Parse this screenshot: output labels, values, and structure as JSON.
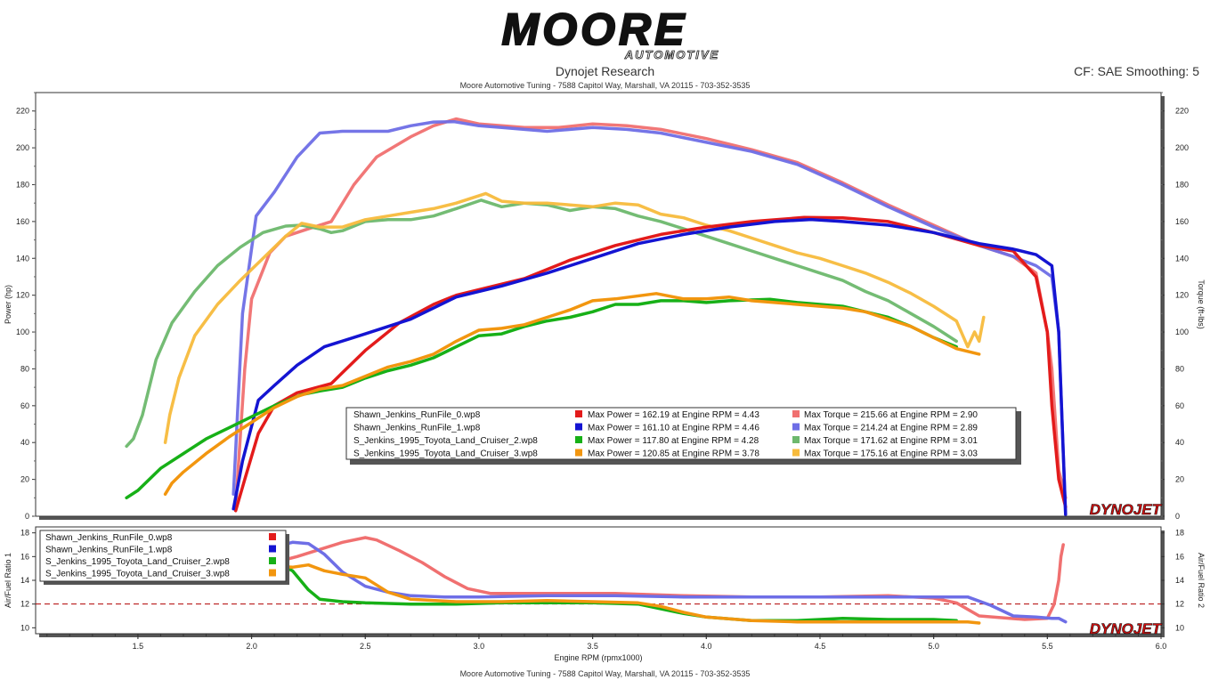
{
  "brand": {
    "logo_text": "MOORE",
    "logo_sub": "AUTOMOTIVE",
    "dyno_logo": "DYNOJET"
  },
  "header": {
    "title": "Dynojet Research",
    "subtitle": "Moore Automotive Tuning - 7588 Capitol Way, Marshall, VA 20115 - 703-352-3535",
    "cf": "CF: SAE Smoothing: 5"
  },
  "footer": {
    "text": "Moore Automotive Tuning - 7588 Capitol Way, Marshall, VA 20115 - 703-352-3535"
  },
  "colors": {
    "run0": "#e31b1b",
    "run0_light": "#f07070",
    "run1": "#1414d2",
    "run1_light": "#6e6ee6",
    "run2": "#17b017",
    "run2_light": "#6db86d",
    "run3": "#f2960f",
    "run3_light": "#f7bb3c",
    "afr_target": "#b00000"
  },
  "chart_data": [
    {
      "type": "line",
      "xlabel": "Engine RPM (rpmx1000)",
      "ylabel": "Power (hp)",
      "y2label": "Torque (ft-lbs)",
      "xlim": [
        1.05,
        6.0
      ],
      "ylim": [
        0,
        230
      ],
      "xticks": [
        1.5,
        2.0,
        2.5,
        3.0,
        3.5,
        4.0,
        4.5,
        5.0,
        5.5,
        6.0
      ],
      "xtick_labels": [
        "1.5",
        "2.0",
        "2.5",
        "3.0",
        "3.5",
        "4.0",
        "4.5",
        "5.0",
        "5.5",
        "6.0"
      ],
      "yticks": [
        0,
        20,
        40,
        60,
        80,
        100,
        120,
        140,
        160,
        180,
        200,
        220
      ],
      "ytick_labels": [
        "0",
        "20",
        "40",
        "60",
        "80",
        "100",
        "120",
        "140",
        "160",
        "180",
        "200",
        "220"
      ],
      "legend_position": "center-right",
      "legend": [
        {
          "file": "Shawn_Jenkins_RunFile_0.wp8",
          "power": "Max Power = 162.19 at Engine RPM = 4.43",
          "torque": "Max Torque = 215.66 at Engine RPM = 2.90"
        },
        {
          "file": "Shawn_Jenkins_RunFile_1.wp8",
          "power": "Max Power = 161.10 at Engine RPM = 4.46",
          "torque": "Max Torque = 214.24 at Engine RPM = 2.89"
        },
        {
          "file": "S_Jenkins_1995_Toyota_Land_Cruiser_2.wp8",
          "power": "Max Power = 117.80 at Engine RPM = 4.28",
          "torque": "Max Torque = 171.62 at Engine RPM = 3.01"
        },
        {
          "file": "S_Jenkins_1995_Toyota_Land_Cruiser_3.wp8",
          "power": "Max Power = 120.85 at Engine RPM = 3.78",
          "torque": "Max Torque = 175.16 at Engine RPM = 3.03"
        }
      ],
      "series": [
        {
          "kind": "torque",
          "run": 0,
          "x": [
            1.93,
            1.97,
            2.0,
            2.08,
            2.15,
            2.25,
            2.35,
            2.45,
            2.55,
            2.7,
            2.8,
            2.9,
            3.0,
            3.1,
            3.2,
            3.35,
            3.5,
            3.65,
            3.8,
            4.0,
            4.2,
            4.4,
            4.6,
            4.8,
            5.0,
            5.2,
            5.35,
            5.45,
            5.5,
            5.52,
            5.55,
            5.58
          ],
          "y": [
            5,
            80,
            118,
            143,
            152,
            156,
            160,
            180,
            195,
            206,
            212,
            215.7,
            213,
            212,
            211,
            211,
            213,
            212,
            210,
            205,
            199,
            192,
            181,
            169,
            158,
            147,
            141,
            132,
            100,
            80,
            25,
            10
          ]
        },
        {
          "kind": "torque",
          "run": 1,
          "x": [
            1.92,
            1.96,
            2.02,
            2.1,
            2.2,
            2.3,
            2.4,
            2.5,
            2.6,
            2.7,
            2.8,
            2.89,
            3.0,
            3.1,
            3.2,
            3.3,
            3.5,
            3.65,
            3.8,
            4.0,
            4.2,
            4.4,
            4.6,
            4.8,
            5.0,
            5.2,
            5.35,
            5.45,
            5.52,
            5.55,
            5.58
          ],
          "y": [
            12,
            110,
            163,
            176,
            195,
            208,
            209,
            209,
            209,
            212,
            214,
            214.2,
            212,
            211,
            210,
            209,
            211,
            210,
            208,
            203,
            198,
            191,
            180,
            168,
            157,
            147,
            141,
            136,
            130,
            100,
            1
          ]
        },
        {
          "kind": "torque",
          "run": 2,
          "x": [
            1.45,
            1.48,
            1.52,
            1.58,
            1.65,
            1.75,
            1.85,
            1.95,
            2.05,
            2.15,
            2.22,
            2.3,
            2.35,
            2.4,
            2.5,
            2.6,
            2.7,
            2.8,
            2.9,
            3.01,
            3.1,
            3.2,
            3.3,
            3.4,
            3.5,
            3.6,
            3.7,
            3.8,
            3.9,
            4.0,
            4.1,
            4.2,
            4.3,
            4.4,
            4.5,
            4.6,
            4.7,
            4.8,
            4.9,
            5.0,
            5.1
          ],
          "y": [
            38,
            42,
            55,
            85,
            105,
            122,
            136,
            146,
            154,
            157.5,
            158,
            156,
            154,
            155,
            160,
            161,
            161,
            163,
            167,
            171.6,
            168,
            170,
            169,
            166,
            168,
            167,
            163,
            160,
            156,
            152,
            148,
            144,
            140,
            136,
            132,
            128,
            122,
            117,
            110,
            103,
            95
          ]
        },
        {
          "kind": "torque",
          "run": 3,
          "x": [
            1.62,
            1.64,
            1.68,
            1.75,
            1.85,
            1.95,
            2.05,
            2.15,
            2.22,
            2.3,
            2.4,
            2.5,
            2.6,
            2.7,
            2.8,
            2.9,
            3.03,
            3.1,
            3.2,
            3.3,
            3.4,
            3.5,
            3.6,
            3.7,
            3.8,
            3.9,
            4.0,
            4.1,
            4.2,
            4.3,
            4.4,
            4.5,
            4.6,
            4.7,
            4.8,
            4.9,
            5.0,
            5.1,
            5.15,
            5.18,
            5.2,
            5.22
          ],
          "y": [
            40,
            55,
            75,
            98,
            115,
            128,
            140,
            152,
            159,
            157,
            157,
            161,
            163,
            165,
            167,
            170,
            175.2,
            171,
            170,
            170,
            169,
            168,
            170,
            169,
            164,
            162,
            158,
            155,
            151,
            147,
            143,
            140,
            136,
            132,
            127,
            121,
            114,
            106,
            92,
            100,
            95,
            108
          ]
        },
        {
          "kind": "power",
          "run": 0,
          "x": [
            1.93,
            1.97,
            2.03,
            2.1,
            2.2,
            2.35,
            2.5,
            2.65,
            2.8,
            2.9,
            3.0,
            3.2,
            3.4,
            3.6,
            3.8,
            4.0,
            4.2,
            4.43,
            4.6,
            4.8,
            5.0,
            5.2,
            5.35,
            5.45,
            5.5,
            5.52,
            5.55,
            5.58
          ],
          "y": [
            3,
            20,
            45,
            60,
            67,
            72,
            90,
            105,
            115,
            120,
            123,
            129,
            139,
            147,
            153,
            157,
            160,
            162.2,
            162,
            160,
            154,
            147,
            144,
            130,
            100,
            60,
            20,
            5
          ]
        },
        {
          "kind": "power",
          "run": 1,
          "x": [
            1.92,
            1.96,
            2.03,
            2.1,
            2.2,
            2.32,
            2.5,
            2.7,
            2.9,
            3.1,
            3.3,
            3.5,
            3.7,
            3.9,
            4.1,
            4.3,
            4.46,
            4.6,
            4.8,
            5.0,
            5.2,
            5.35,
            5.45,
            5.52,
            5.55,
            5.58
          ],
          "y": [
            4,
            30,
            63,
            71,
            82,
            92,
            99,
            107,
            119,
            125,
            132,
            140,
            148,
            153,
            157,
            160,
            161.1,
            160,
            158,
            154,
            148,
            145,
            142,
            136,
            100,
            1
          ]
        },
        {
          "kind": "power",
          "run": 2,
          "x": [
            1.45,
            1.5,
            1.6,
            1.7,
            1.8,
            1.9,
            2.0,
            2.1,
            2.22,
            2.3,
            2.4,
            2.5,
            2.6,
            2.7,
            2.8,
            2.9,
            3.0,
            3.1,
            3.2,
            3.3,
            3.4,
            3.5,
            3.6,
            3.7,
            3.8,
            3.9,
            4.0,
            4.1,
            4.28,
            4.4,
            4.5,
            4.6,
            4.7,
            4.8,
            4.9,
            5.0,
            5.1
          ],
          "y": [
            10,
            14,
            26,
            34,
            42,
            48,
            54,
            60,
            66,
            68,
            70,
            75,
            79,
            82,
            86,
            92,
            98,
            99,
            103,
            106,
            108,
            111,
            115,
            115,
            117,
            117,
            116,
            117,
            117.8,
            116,
            115,
            114,
            111,
            108,
            103,
            97,
            92
          ]
        },
        {
          "kind": "power",
          "run": 3,
          "x": [
            1.62,
            1.65,
            1.7,
            1.8,
            1.9,
            2.0,
            2.1,
            2.2,
            2.3,
            2.4,
            2.5,
            2.6,
            2.7,
            2.8,
            2.9,
            3.0,
            3.1,
            3.2,
            3.3,
            3.4,
            3.5,
            3.6,
            3.78,
            3.9,
            4.0,
            4.1,
            4.2,
            4.3,
            4.4,
            4.5,
            4.6,
            4.7,
            4.8,
            4.9,
            5.0,
            5.1,
            5.2
          ],
          "y": [
            12,
            18,
            24,
            34,
            43,
            51,
            59,
            65,
            69,
            71,
            76,
            81,
            84,
            88,
            95,
            101,
            102,
            104,
            108,
            112,
            117,
            118,
            120.9,
            118,
            118,
            119,
            117,
            116,
            115,
            114,
            113,
            111,
            107,
            103,
            97,
            91,
            88
          ]
        }
      ]
    },
    {
      "type": "line",
      "xlabel": "Engine RPM (rpmx1000)",
      "ylabel": "Air/Fuel Ratio 1",
      "y2label": "Air/Fuel Ratio 2",
      "xlim": [
        1.05,
        6.0
      ],
      "ylim": [
        9.5,
        18.5
      ],
      "yticks": [
        10,
        12,
        14,
        16,
        18
      ],
      "ytick_labels": [
        "10",
        "12",
        "14",
        "16",
        "18"
      ],
      "target_line": 12,
      "legend_position": "top-left",
      "legend": [
        "Shawn_Jenkins_RunFile_0.wp8",
        "Shawn_Jenkins_RunFile_1.wp8",
        "S_Jenkins_1995_Toyota_Land_Cruiser_2.wp8",
        "S_Jenkins_1995_Toyota_Land_Cruiser_3.wp8"
      ],
      "series": [
        {
          "run": 0,
          "x": [
            2.1,
            2.2,
            2.3,
            2.4,
            2.5,
            2.55,
            2.65,
            2.75,
            2.85,
            2.95,
            3.05,
            3.3,
            3.6,
            3.9,
            4.2,
            4.5,
            4.8,
            5.0,
            5.1,
            5.2,
            5.4,
            5.5,
            5.53,
            5.55,
            5.56,
            5.57
          ],
          "y": [
            15.5,
            16.0,
            16.6,
            17.2,
            17.6,
            17.4,
            16.5,
            15.5,
            14.3,
            13.3,
            12.9,
            12.9,
            12.9,
            12.7,
            12.6,
            12.6,
            12.7,
            12.5,
            12.1,
            11.0,
            10.7,
            10.8,
            12.0,
            14.0,
            16.0,
            17.0
          ]
        },
        {
          "run": 1,
          "x": [
            2.1,
            2.18,
            2.25,
            2.32,
            2.4,
            2.5,
            2.6,
            2.7,
            2.85,
            3.0,
            3.3,
            3.6,
            3.9,
            4.2,
            4.5,
            4.8,
            5.0,
            5.15,
            5.25,
            5.35,
            5.45,
            5.52,
            5.55,
            5.58
          ],
          "y": [
            16.8,
            17.2,
            17.1,
            16.2,
            14.7,
            13.5,
            13.0,
            12.7,
            12.6,
            12.6,
            12.7,
            12.7,
            12.6,
            12.6,
            12.6,
            12.6,
            12.6,
            12.6,
            11.9,
            11.0,
            10.9,
            10.8,
            10.8,
            10.5
          ]
        },
        {
          "run": 2,
          "x": [
            2.1,
            2.18,
            2.25,
            2.3,
            2.4,
            2.5,
            2.7,
            2.9,
            3.1,
            3.3,
            3.5,
            3.7,
            3.8,
            3.9,
            4.0,
            4.2,
            4.4,
            4.6,
            4.8,
            5.0,
            5.1
          ],
          "y": [
            15.6,
            14.8,
            13.2,
            12.4,
            12.2,
            12.1,
            12.0,
            12.0,
            12.1,
            12.1,
            12.1,
            12.0,
            11.6,
            11.2,
            10.9,
            10.6,
            10.6,
            10.8,
            10.7,
            10.7,
            10.6
          ]
        },
        {
          "run": 3,
          "x": [
            2.1,
            2.18,
            2.25,
            2.32,
            2.4,
            2.5,
            2.6,
            2.7,
            2.9,
            3.1,
            3.3,
            3.5,
            3.7,
            3.8,
            3.9,
            4.0,
            4.2,
            4.4,
            4.6,
            4.8,
            5.0,
            5.15,
            5.2
          ],
          "y": [
            15.2,
            15.1,
            15.3,
            14.8,
            14.5,
            14.2,
            13.0,
            12.4,
            12.2,
            12.2,
            12.3,
            12.2,
            12.1,
            11.8,
            11.3,
            10.9,
            10.6,
            10.5,
            10.5,
            10.5,
            10.5,
            10.5,
            10.4
          ]
        }
      ]
    }
  ]
}
